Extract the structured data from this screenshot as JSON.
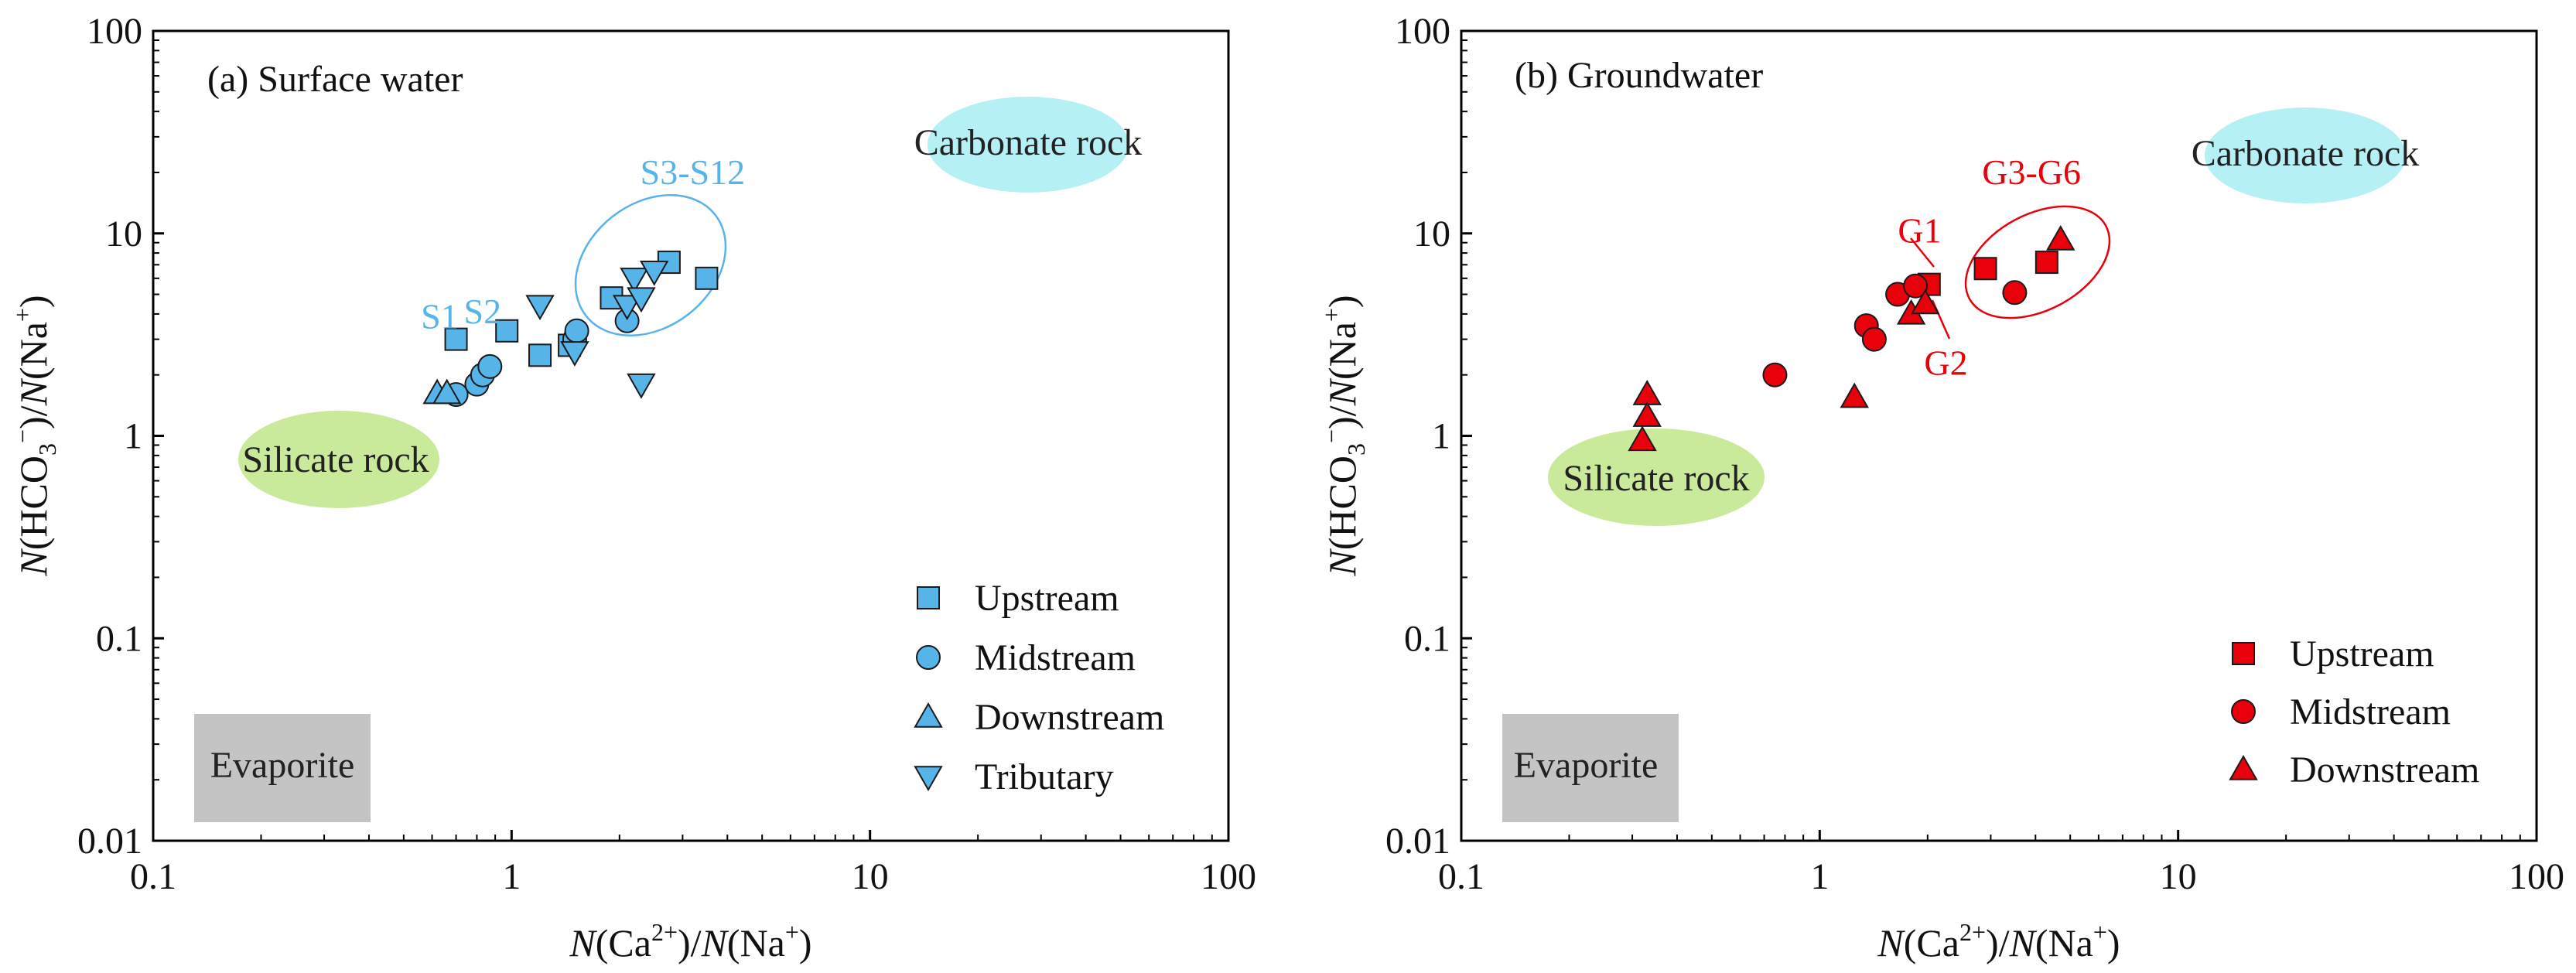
{
  "figure": {
    "axis_labels": {
      "x_italic": "N",
      "x_ca": "(Ca",
      "x_ca_sup": "2+",
      "x_mid": ")/",
      "x_na": "(Na",
      "x_na_sup": "+",
      "x_close": ")",
      "y_hco": "(HCO",
      "y_sub": "3",
      "y_sup": "−",
      "y_mid": ")/",
      "y_na": "(Na",
      "y_na_sup": "+",
      "y_close": ")"
    },
    "x_ticks": [
      "0.1",
      "1",
      "10",
      "100"
    ],
    "y_ticks": [
      "0.01",
      "0.1",
      "1",
      "10",
      "100"
    ],
    "region_labels": {
      "carbonate": "Carbonate rock",
      "silicate": "Silicate rock",
      "evaporite": "Evaporite"
    },
    "region_colors": {
      "carbonate": "#b5f0f5",
      "silicate": "#c9ea9a",
      "evaporite": "#c4c4c4"
    }
  },
  "chart_data": [
    {
      "type": "scatter",
      "title": "(a) Surface water",
      "xscale": "log",
      "yscale": "log",
      "xlim": [
        0.1,
        100
      ],
      "ylim": [
        0.01,
        100
      ],
      "marker_color": "#56b4e9",
      "annotation_color": "#56b4e9",
      "legend_position": "bottom-right",
      "series": [
        {
          "name": "Upstream",
          "marker": "square",
          "points": [
            [
              0.7,
              3.0
            ],
            [
              0.97,
              3.3
            ],
            [
              1.2,
              2.5
            ],
            [
              1.45,
              2.8
            ],
            [
              1.9,
              4.8
            ],
            [
              2.75,
              7.2
            ],
            [
              3.5,
              6.0
            ]
          ]
        },
        {
          "name": "Midstream",
          "marker": "circle",
          "points": [
            [
              0.7,
              1.6
            ],
            [
              0.8,
              1.8
            ],
            [
              0.83,
              2.0
            ],
            [
              0.87,
              2.2
            ],
            [
              1.5,
              3.0
            ],
            [
              1.52,
              3.3
            ],
            [
              2.1,
              3.7
            ]
          ]
        },
        {
          "name": "Downstream",
          "marker": "triangle-up",
          "points": [
            [
              0.62,
              1.62
            ],
            [
              0.66,
              1.62
            ]
          ]
        },
        {
          "name": "Tributary",
          "marker": "triangle-down",
          "points": [
            [
              1.2,
              4.4
            ],
            [
              1.5,
              2.6
            ],
            [
              2.1,
              4.4
            ],
            [
              2.2,
              6.0
            ],
            [
              2.3,
              4.8
            ],
            [
              2.5,
              6.5
            ],
            [
              2.3,
              1.8
            ]
          ]
        }
      ],
      "annotations": [
        {
          "text": "S1",
          "x": 0.63,
          "y": 3.4
        },
        {
          "text": "S2",
          "x": 0.83,
          "y": 3.6
        },
        {
          "text": "S3-S12",
          "x": 3.2,
          "y": 17.5
        }
      ]
    },
    {
      "type": "scatter",
      "title": "(b) Groundwater",
      "xscale": "log",
      "yscale": "log",
      "xlim": [
        0.1,
        100
      ],
      "ylim": [
        0.01,
        100
      ],
      "marker_color": "#e8000b",
      "annotation_color": "#e8000b",
      "legend_position": "bottom-right",
      "series": [
        {
          "name": "Upstream",
          "marker": "square",
          "points": [
            [
              2.02,
              5.6
            ],
            [
              2.9,
              6.7
            ],
            [
              4.3,
              7.2
            ]
          ]
        },
        {
          "name": "Midstream",
          "marker": "circle",
          "points": [
            [
              0.75,
              2.0
            ],
            [
              1.35,
              3.5
            ],
            [
              1.42,
              3.0
            ],
            [
              1.65,
              5.0
            ],
            [
              1.85,
              5.5
            ],
            [
              3.5,
              5.1
            ]
          ]
        },
        {
          "name": "Downstream",
          "marker": "triangle-up",
          "points": [
            [
              0.33,
              1.6
            ],
            [
              0.33,
              1.25
            ],
            [
              0.32,
              0.95
            ],
            [
              1.25,
              1.55
            ],
            [
              1.8,
              4.0
            ],
            [
              1.97,
              4.5
            ],
            [
              4.7,
              9.3
            ]
          ]
        }
      ],
      "annotations": [
        {
          "text": "G1",
          "x": 1.9,
          "y": 9.0
        },
        {
          "text": "G2",
          "x": 2.25,
          "y": 2.0
        },
        {
          "text": "G3-G6",
          "x": 3.9,
          "y": 17.5
        }
      ]
    }
  ]
}
